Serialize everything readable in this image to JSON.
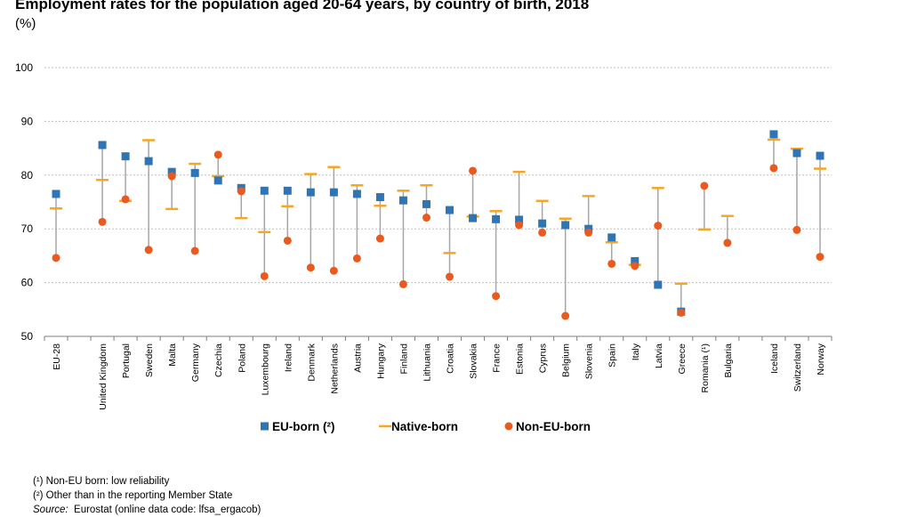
{
  "title": "Employment rates for the population aged 20-64 years, by country of birth, 2018",
  "unit": "(%)",
  "notes": [
    "(¹) Non-EU born: low reliability",
    "(²) Other than in the reporting Member State"
  ],
  "source": {
    "label": "Source:",
    "text": "Eurostat (online data code: lfsa_ergacob)"
  },
  "colors": {
    "eu": "#2E75B6",
    "native": "#F5A623",
    "noneu": "#EA5A1E",
    "connector": "#A6A6A6",
    "grid": "#BFBFBF",
    "axis": "#7F7F7F"
  },
  "chart_data": {
    "type": "scatter",
    "title": "Employment rates for the population aged 20-64 years, by country of birth, 2018",
    "ylabel": "(%)",
    "ylim": [
      50,
      100
    ],
    "yticks": [
      50,
      60,
      70,
      80,
      90,
      100
    ],
    "grid": true,
    "legend_position": "bottom",
    "categories": [
      "EU-28",
      "United Kingdom",
      "Portugal",
      "Sweden",
      "Malta",
      "Germany",
      "Czechia",
      "Poland",
      "Luxembourg",
      "Ireland",
      "Denmark",
      "Netherlands",
      "Austria",
      "Hungary",
      "Finland",
      "Lithuania",
      "Croatia",
      "Slovakia",
      "France",
      "Estonia",
      "Cyprus",
      "Belgium",
      "Slovenia",
      "Spain",
      "Italy",
      "Latvia",
      "Greece",
      "Romania (¹)",
      "Bulgaria",
      "Iceland",
      "Switzerland",
      "Norway"
    ],
    "series": [
      {
        "name": "EU-born (²)",
        "marker": "square",
        "values": [
          76.5,
          85.6,
          83.5,
          82.6,
          80.6,
          80.4,
          79.0,
          77.6,
          77.1,
          77.1,
          76.8,
          76.8,
          76.5,
          75.9,
          75.3,
          74.6,
          73.5,
          72.0,
          71.8,
          71.7,
          71.0,
          70.7,
          70.0,
          68.4,
          64.0,
          59.6,
          54.6,
          null,
          null,
          87.6,
          84.1,
          83.6
        ]
      },
      {
        "name": "Native-born",
        "marker": "dash",
        "values": [
          73.8,
          79.1,
          75.2,
          86.5,
          73.7,
          82.1,
          79.8,
          72.0,
          69.4,
          74.2,
          80.2,
          81.5,
          78.1,
          74.3,
          77.1,
          78.1,
          65.5,
          72.3,
          73.3,
          80.6,
          75.2,
          71.9,
          76.1,
          67.5,
          63.3,
          77.6,
          59.8,
          69.9,
          72.4,
          86.6,
          84.9,
          81.2
        ]
      },
      {
        "name": "Non-EU-born",
        "marker": "circle",
        "values": [
          64.6,
          71.3,
          75.5,
          66.1,
          79.8,
          65.9,
          83.8,
          77.0,
          61.2,
          67.8,
          62.8,
          62.2,
          64.5,
          68.2,
          59.7,
          72.1,
          61.1,
          80.8,
          57.5,
          70.7,
          69.3,
          53.8,
          69.3,
          63.5,
          63.1,
          70.6,
          54.4,
          78.0,
          67.4,
          81.3,
          69.8,
          64.8
        ]
      }
    ]
  }
}
